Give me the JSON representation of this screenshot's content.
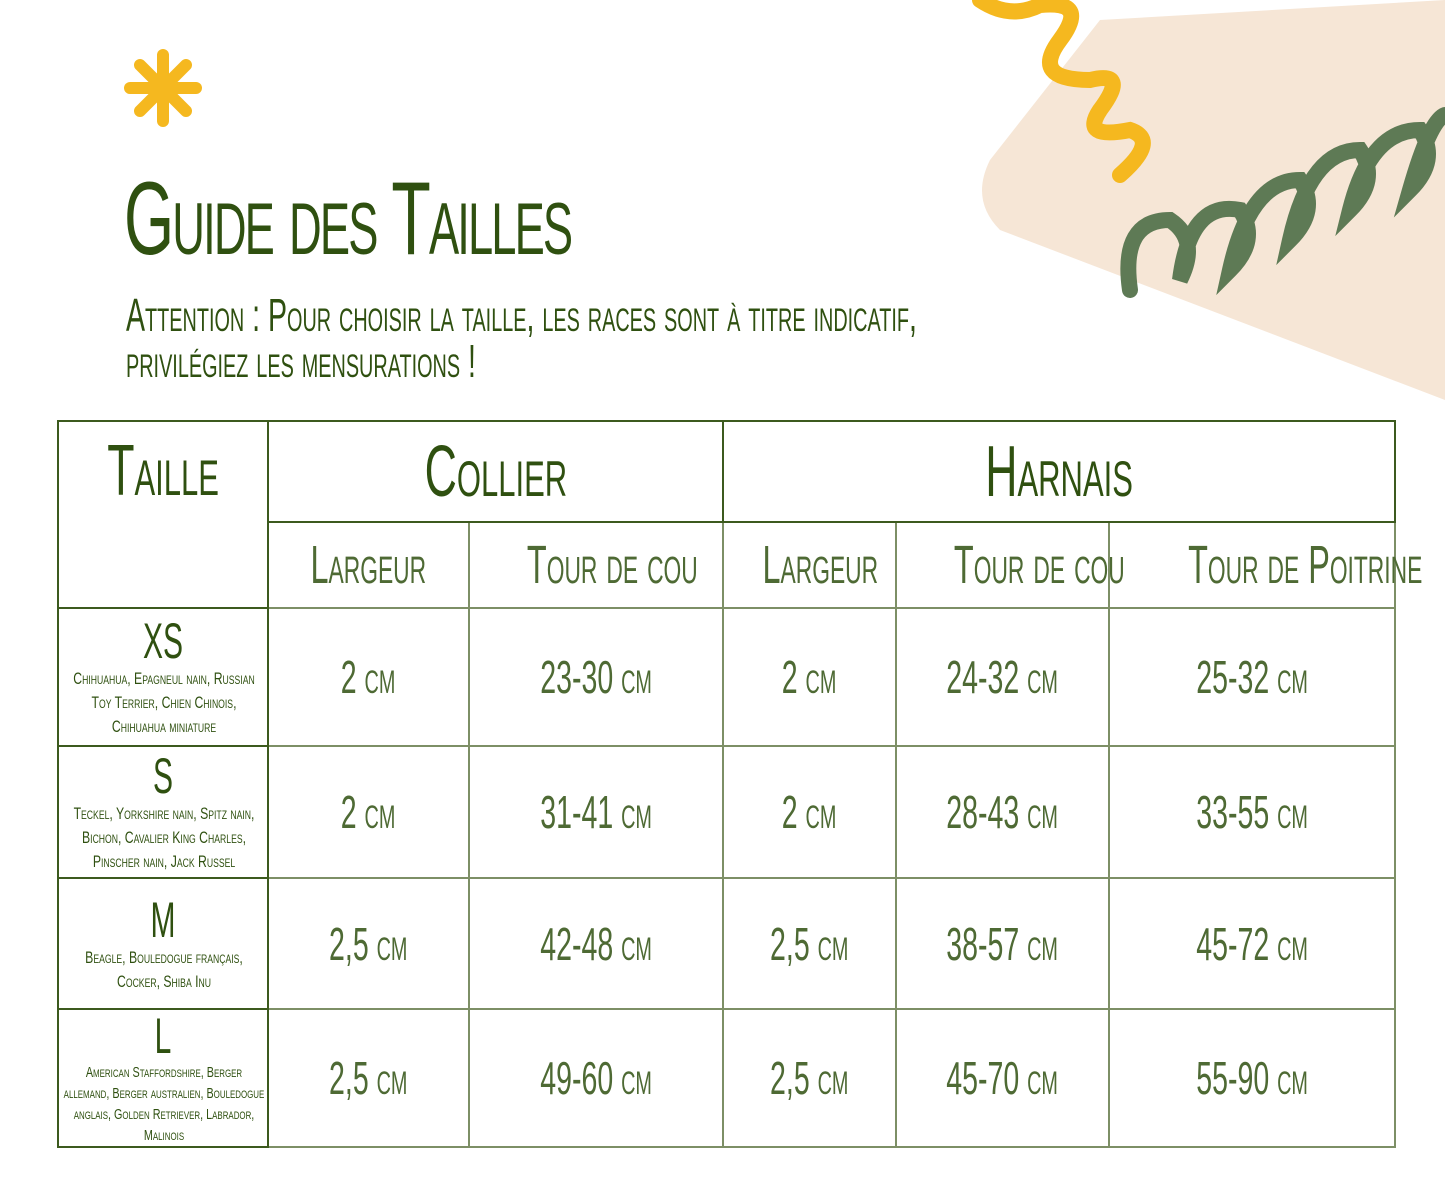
{
  "title": "Guide des Tailles",
  "warning": {
    "line1": "Attention : Pour choisir la taille, les races sont à titre indicatif,",
    "line2": "privilégiez les mensurations !"
  },
  "colors": {
    "text": "#2f5010",
    "accent_yellow": "#f5b81f",
    "decor_green": "#5e7a55",
    "decor_beige": "#f6e6d6"
  },
  "table": {
    "headers": {
      "size": "Taille",
      "collar": "Collier",
      "harness": "Harnais"
    },
    "subheaders": [
      "Largeur",
      "Tour de cou",
      "Largeur",
      "Tour de cou",
      "Tour de Poitrine"
    ],
    "rows": [
      {
        "size": "XS",
        "breeds": "Chihuahua, Epagneul nain, Russian Toy Terrier, Chien Chinois, Chihuahua miniature",
        "values": [
          "2 cm",
          "23-30 cm",
          "2 cm",
          "24-32 cm",
          "25-32 cm"
        ]
      },
      {
        "size": "S",
        "breeds": "Teckel, Yorkshire nain, Spitz nain, Bichon, Cavalier King Charles, Pinscher nain, Jack Russel",
        "values": [
          "2 cm",
          "31-41 cm",
          "2 cm",
          "28-43 cm",
          "33-55 cm"
        ]
      },
      {
        "size": "M",
        "breeds": "Beagle, Bouledogue français, Cocker, Shiba Inu",
        "values": [
          "2,5 cm",
          "42-48 cm",
          "2,5 cm",
          "38-57 cm",
          "45-72 cm"
        ]
      },
      {
        "size": "L",
        "breeds": "American Staffordshire, Berger allemand, Berger australien, Bouledogue anglais, Golden Retriever, Labrador, Malinois",
        "values": [
          "2,5 cm",
          "49-60 cm",
          "2,5 cm",
          "45-70 cm",
          "55-90 cm"
        ]
      }
    ]
  }
}
